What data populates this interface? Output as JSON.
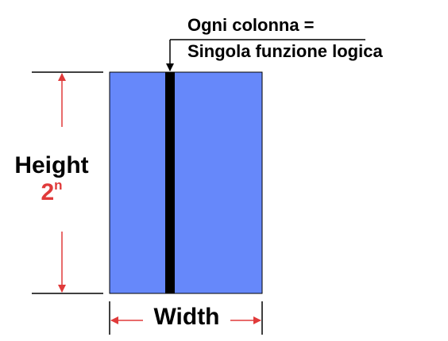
{
  "annotation": {
    "line1": "Ogni colonna =",
    "line2": "Singola funzione logica"
  },
  "height_label": {
    "text": "Height",
    "base": "2",
    "exponent": "n"
  },
  "width_label": {
    "text": "Width"
  },
  "colors": {
    "memory_block": "#6688fa",
    "column": "#000000",
    "arrow": "#e03a3a",
    "text": "#000000",
    "exponent": "#e03a3a",
    "guide_line": "#000000"
  }
}
